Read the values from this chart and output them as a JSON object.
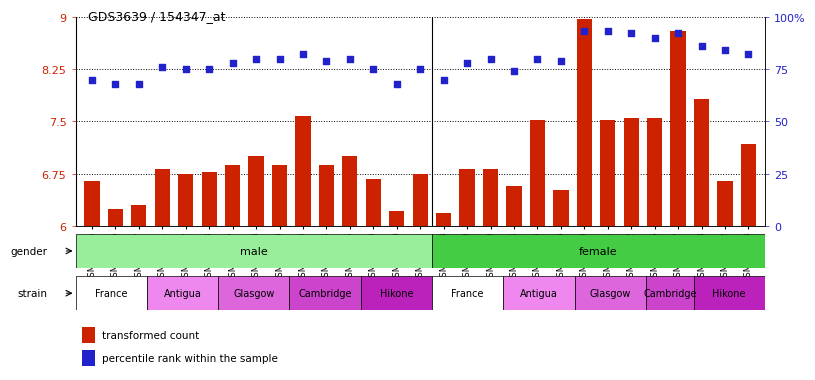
{
  "title": "GDS3639 / 154347_at",
  "samples": [
    "GSM231205",
    "GSM231206",
    "GSM231207",
    "GSM231211",
    "GSM231212",
    "GSM231213",
    "GSM231217",
    "GSM231218",
    "GSM231219",
    "GSM231223",
    "GSM231224",
    "GSM231225",
    "GSM231229",
    "GSM231230",
    "GSM231231",
    "GSM231208",
    "GSM231209",
    "GSM231210",
    "GSM231214",
    "GSM231215",
    "GSM231216",
    "GSM231220",
    "GSM231221",
    "GSM231222",
    "GSM231226",
    "GSM231227",
    "GSM231228",
    "GSM231232",
    "GSM231233"
  ],
  "bar_values": [
    6.65,
    6.25,
    6.3,
    6.82,
    6.75,
    6.78,
    6.88,
    7.0,
    6.88,
    7.58,
    6.88,
    7.0,
    6.68,
    6.22,
    6.75,
    6.18,
    6.82,
    6.82,
    6.58,
    7.52,
    6.52,
    8.97,
    7.52,
    7.55,
    7.55,
    8.8,
    7.82,
    6.65,
    7.18
  ],
  "dot_values": [
    70,
    68,
    68,
    76,
    75,
    75,
    78,
    80,
    80,
    82,
    79,
    80,
    75,
    68,
    75,
    70,
    78,
    80,
    74,
    80,
    79,
    93,
    93,
    92,
    90,
    92,
    86,
    84,
    82
  ],
  "ylim_left": [
    6.0,
    9.0
  ],
  "ylim_right": [
    0,
    100
  ],
  "yticks_left": [
    6.0,
    6.75,
    7.5,
    8.25,
    9.0
  ],
  "ytick_labels_left": [
    "6",
    "6.75",
    "7.5",
    "8.25",
    "9"
  ],
  "yticks_right": [
    0,
    25,
    50,
    75,
    100
  ],
  "ytick_labels_right": [
    "0",
    "25",
    "50",
    "75",
    "100%"
  ],
  "bar_color": "#cc2200",
  "dot_color": "#2222cc",
  "gender_male_color": "#99ee99",
  "gender_female_color": "#44cc44",
  "strain_colors": {
    "France": "#ffffff",
    "Antigua": "#ee88ee",
    "Glasgow": "#dd66dd",
    "Cambridge": "#cc44cc",
    "Hikone": "#bb22bb"
  },
  "male_samples_count": 15,
  "female_samples_count": 14,
  "strain_groups_male": [
    {
      "label": "France",
      "count": 3
    },
    {
      "label": "Antigua",
      "count": 3
    },
    {
      "label": "Glasgow",
      "count": 3
    },
    {
      "label": "Cambridge",
      "count": 3
    },
    {
      "label": "Hikone",
      "count": 3
    }
  ],
  "strain_groups_female": [
    {
      "label": "France",
      "count": 3
    },
    {
      "label": "Antigua",
      "count": 3
    },
    {
      "label": "Glasgow",
      "count": 3
    },
    {
      "label": "Cambridge",
      "count": 2
    },
    {
      "label": "Hikone",
      "count": 3
    }
  ]
}
